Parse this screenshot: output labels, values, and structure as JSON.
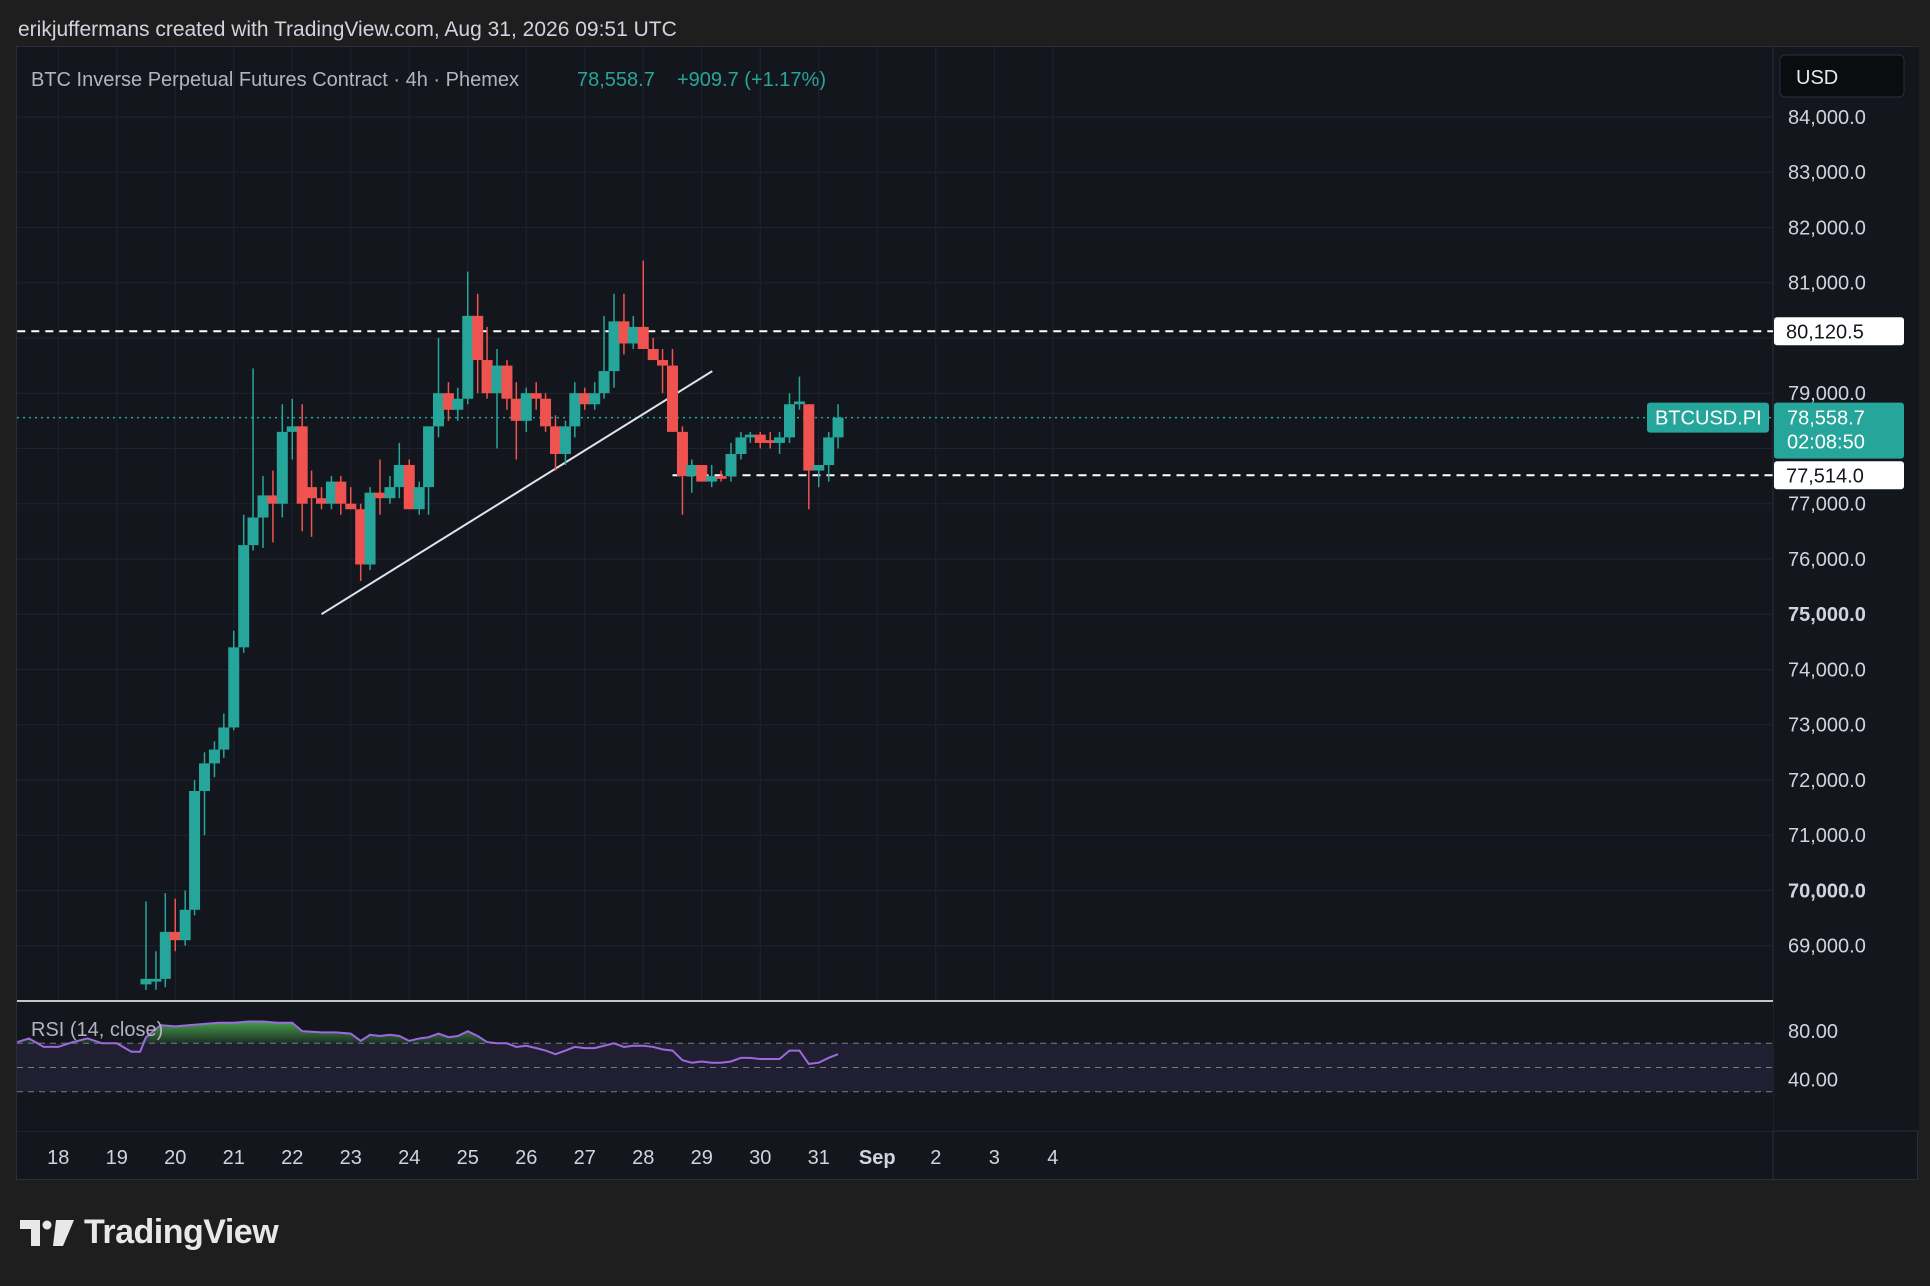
{
  "header": {
    "credit": "erikjuffermans created with TradingView.com, Aug 31, 2026 09:51 UTC"
  },
  "legend": {
    "symbol": "BTC Inverse Perpetual Futures Contract · 4h · Phemex",
    "last": "78,558.7",
    "change": "+909.7 (+1.17%)"
  },
  "currency_button": "USD",
  "price_badge": {
    "symbol": "BTCUSD.PI",
    "price": "78,558.7",
    "countdown": "02:08:50"
  },
  "rsi_label": "RSI (14, close)",
  "brand": "TradingView",
  "colors": {
    "up": "#26a69a",
    "down": "#ef5350",
    "rsi": "#9c6ade",
    "background": "#14161d"
  },
  "chart_data": {
    "type": "candlestick",
    "timeframe": "4h",
    "y_ticks": [
      {
        "value": 84000,
        "label": "84,000.0"
      },
      {
        "value": 83000,
        "label": "83,000.0"
      },
      {
        "value": 82000,
        "label": "82,000.0"
      },
      {
        "value": 81000,
        "label": "81,000.0"
      },
      {
        "value": 79000,
        "label": "79,000.0"
      },
      {
        "value": 77000,
        "label": "77,000.0"
      },
      {
        "value": 76000,
        "label": "76,000.0"
      },
      {
        "value": 75000,
        "label": "75,000.0",
        "bold": true
      },
      {
        "value": 74000,
        "label": "74,000.0"
      },
      {
        "value": 73000,
        "label": "73,000.0"
      },
      {
        "value": 72000,
        "label": "72,000.0"
      },
      {
        "value": 71000,
        "label": "71,000.0"
      },
      {
        "value": 70000,
        "label": "70,000.0",
        "bold": true
      },
      {
        "value": 69000,
        "label": "69,000.0"
      }
    ],
    "x_ticks": [
      {
        "day": 18,
        "label": "18"
      },
      {
        "day": 19,
        "label": "19"
      },
      {
        "day": 20,
        "label": "20"
      },
      {
        "day": 21,
        "label": "21"
      },
      {
        "day": 22,
        "label": "22"
      },
      {
        "day": 23,
        "label": "23"
      },
      {
        "day": 24,
        "label": "24"
      },
      {
        "day": 25,
        "label": "25"
      },
      {
        "day": 26,
        "label": "26"
      },
      {
        "day": 27,
        "label": "27"
      },
      {
        "day": 28,
        "label": "28"
      },
      {
        "day": 29,
        "label": "29"
      },
      {
        "day": 30,
        "label": "30"
      },
      {
        "day": 31,
        "label": "31"
      },
      {
        "day": 32,
        "label": "Sep",
        "bold": true
      },
      {
        "day": 33,
        "label": "2"
      },
      {
        "day": 34,
        "label": "3"
      },
      {
        "day": 35,
        "label": "4"
      }
    ],
    "horizontal_levels": [
      {
        "value": 80120.5,
        "label": "80,120.5",
        "from_day": 17.3
      },
      {
        "value": 77514.0,
        "label": "77,514.0",
        "from_day": 28.5
      }
    ],
    "current_price": 78558.7,
    "trendline": {
      "start": [
        22.5,
        75000
      ],
      "end": [
        29.18,
        79400
      ]
    },
    "candles": [
      {
        "day": 19.5,
        "o": 68300,
        "h": 69800,
        "l": 68200,
        "c": 68400
      },
      {
        "day": 19.67,
        "o": 68350,
        "h": 68900,
        "l": 68200,
        "c": 68400
      },
      {
        "day": 19.83,
        "o": 68400,
        "h": 69950,
        "l": 68250,
        "c": 69250
      },
      {
        "day": 20.0,
        "o": 69250,
        "h": 69850,
        "l": 68900,
        "c": 69100
      },
      {
        "day": 20.17,
        "o": 69100,
        "h": 70000,
        "l": 69000,
        "c": 69650
      },
      {
        "day": 20.33,
        "o": 69650,
        "h": 72000,
        "l": 69550,
        "c": 71800
      },
      {
        "day": 20.5,
        "o": 71800,
        "h": 72500,
        "l": 71000,
        "c": 72300
      },
      {
        "day": 20.67,
        "o": 72300,
        "h": 72700,
        "l": 72050,
        "c": 72550
      },
      {
        "day": 20.83,
        "o": 72550,
        "h": 73200,
        "l": 72400,
        "c": 72950
      },
      {
        "day": 21.0,
        "o": 72950,
        "h": 74700,
        "l": 72900,
        "c": 74400
      },
      {
        "day": 21.17,
        "o": 74400,
        "h": 76800,
        "l": 74300,
        "c": 76250
      },
      {
        "day": 21.33,
        "o": 76250,
        "h": 79450,
        "l": 76150,
        "c": 76750
      },
      {
        "day": 21.5,
        "o": 76750,
        "h": 77500,
        "l": 76200,
        "c": 77150
      },
      {
        "day": 21.67,
        "o": 77150,
        "h": 77600,
        "l": 76300,
        "c": 77000
      },
      {
        "day": 21.83,
        "o": 77000,
        "h": 78800,
        "l": 76750,
        "c": 78300
      },
      {
        "day": 22.0,
        "o": 78300,
        "h": 78900,
        "l": 77800,
        "c": 78400
      },
      {
        "day": 22.17,
        "o": 78400,
        "h": 78800,
        "l": 76500,
        "c": 77000
      },
      {
        "day": 22.33,
        "o": 77300,
        "h": 77600,
        "l": 76400,
        "c": 77100
      },
      {
        "day": 22.5,
        "o": 77100,
        "h": 77300,
        "l": 76900,
        "c": 77000
      },
      {
        "day": 22.67,
        "o": 77000,
        "h": 77500,
        "l": 76900,
        "c": 77400
      },
      {
        "day": 22.83,
        "o": 77400,
        "h": 77500,
        "l": 76800,
        "c": 77000
      },
      {
        "day": 23.0,
        "o": 77000,
        "h": 77300,
        "l": 76900,
        "c": 76900
      },
      {
        "day": 23.17,
        "o": 76900,
        "h": 77000,
        "l": 75600,
        "c": 75900
      },
      {
        "day": 23.33,
        "o": 75900,
        "h": 77300,
        "l": 75800,
        "c": 77200
      },
      {
        "day": 23.5,
        "o": 77200,
        "h": 77800,
        "l": 76800,
        "c": 77100
      },
      {
        "day": 23.67,
        "o": 77100,
        "h": 77500,
        "l": 77000,
        "c": 77300
      },
      {
        "day": 23.83,
        "o": 77300,
        "h": 78100,
        "l": 77100,
        "c": 77700
      },
      {
        "day": 24.0,
        "o": 77700,
        "h": 77800,
        "l": 76900,
        "c": 76900
      },
      {
        "day": 24.17,
        "o": 76900,
        "h": 77400,
        "l": 76800,
        "c": 77300
      },
      {
        "day": 24.33,
        "o": 77300,
        "h": 78400,
        "l": 76800,
        "c": 78400
      },
      {
        "day": 24.5,
        "o": 78400,
        "h": 80000,
        "l": 78200,
        "c": 79000
      },
      {
        "day": 24.67,
        "o": 79000,
        "h": 79200,
        "l": 78500,
        "c": 78700
      },
      {
        "day": 24.83,
        "o": 78700,
        "h": 79100,
        "l": 78500,
        "c": 78900
      },
      {
        "day": 25.0,
        "o": 78900,
        "h": 81200,
        "l": 78800,
        "c": 80400
      },
      {
        "day": 25.17,
        "o": 80400,
        "h": 80800,
        "l": 79000,
        "c": 79600
      },
      {
        "day": 25.33,
        "o": 79600,
        "h": 80200,
        "l": 78900,
        "c": 79000
      },
      {
        "day": 25.5,
        "o": 79000,
        "h": 79800,
        "l": 78000,
        "c": 79500
      },
      {
        "day": 25.67,
        "o": 79500,
        "h": 79600,
        "l": 78700,
        "c": 78900
      },
      {
        "day": 25.83,
        "o": 78900,
        "h": 79200,
        "l": 77800,
        "c": 78500
      },
      {
        "day": 26.0,
        "o": 78500,
        "h": 79100,
        "l": 78300,
        "c": 79000
      },
      {
        "day": 26.17,
        "o": 79000,
        "h": 79200,
        "l": 78700,
        "c": 78900
      },
      {
        "day": 26.33,
        "o": 78900,
        "h": 79000,
        "l": 78300,
        "c": 78400
      },
      {
        "day": 26.5,
        "o": 78400,
        "h": 78600,
        "l": 77600,
        "c": 77900
      },
      {
        "day": 26.67,
        "o": 77900,
        "h": 78500,
        "l": 77700,
        "c": 78400
      },
      {
        "day": 26.83,
        "o": 78400,
        "h": 79200,
        "l": 78200,
        "c": 79000
      },
      {
        "day": 27.0,
        "o": 79000,
        "h": 79100,
        "l": 78700,
        "c": 78800
      },
      {
        "day": 27.17,
        "o": 78800,
        "h": 79200,
        "l": 78700,
        "c": 79000
      },
      {
        "day": 27.33,
        "o": 79000,
        "h": 80400,
        "l": 78900,
        "c": 79400
      },
      {
        "day": 27.5,
        "o": 79400,
        "h": 80800,
        "l": 79100,
        "c": 80300
      },
      {
        "day": 27.67,
        "o": 80300,
        "h": 80800,
        "l": 79700,
        "c": 79900
      },
      {
        "day": 27.83,
        "o": 79900,
        "h": 80400,
        "l": 79800,
        "c": 80200
      },
      {
        "day": 28.0,
        "o": 80200,
        "h": 81400,
        "l": 79800,
        "c": 79800
      },
      {
        "day": 28.17,
        "o": 79800,
        "h": 80000,
        "l": 79600,
        "c": 79600
      },
      {
        "day": 28.33,
        "o": 79600,
        "h": 79800,
        "l": 79000,
        "c": 79500
      },
      {
        "day": 28.5,
        "o": 79500,
        "h": 79800,
        "l": 78300,
        "c": 78300
      },
      {
        "day": 28.67,
        "o": 78300,
        "h": 78400,
        "l": 76800,
        "c": 77500
      },
      {
        "day": 28.83,
        "o": 77500,
        "h": 77800,
        "l": 77200,
        "c": 77700
      },
      {
        "day": 29.0,
        "o": 77700,
        "h": 77700,
        "l": 77400,
        "c": 77400
      },
      {
        "day": 29.17,
        "o": 77400,
        "h": 77700,
        "l": 77300,
        "c": 77500
      },
      {
        "day": 29.33,
        "o": 77500,
        "h": 77600,
        "l": 77400,
        "c": 77450
      },
      {
        "day": 29.5,
        "o": 77500,
        "h": 78100,
        "l": 77400,
        "c": 77900
      },
      {
        "day": 29.67,
        "o": 77900,
        "h": 78300,
        "l": 77800,
        "c": 78200
      },
      {
        "day": 29.83,
        "o": 78200,
        "h": 78300,
        "l": 78100,
        "c": 78250
      },
      {
        "day": 30.0,
        "o": 78250,
        "h": 78300,
        "l": 78000,
        "c": 78100
      },
      {
        "day": 30.17,
        "o": 78150,
        "h": 78300,
        "l": 78000,
        "c": 78100
      },
      {
        "day": 30.33,
        "o": 78100,
        "h": 78300,
        "l": 77900,
        "c": 78200
      },
      {
        "day": 30.5,
        "o": 78200,
        "h": 79000,
        "l": 78100,
        "c": 78800
      },
      {
        "day": 30.67,
        "o": 78800,
        "h": 79300,
        "l": 78700,
        "c": 78850
      },
      {
        "day": 30.83,
        "o": 78800,
        "h": 78800,
        "l": 76900,
        "c": 77600
      },
      {
        "day": 31.0,
        "o": 77600,
        "h": 77700,
        "l": 77300,
        "c": 77700
      },
      {
        "day": 31.17,
        "o": 77700,
        "h": 78300,
        "l": 77400,
        "c": 78200
      },
      {
        "day": 31.33,
        "o": 78200,
        "h": 78800,
        "l": 78000,
        "c": 78558.7
      }
    ],
    "rsi": {
      "label": "RSI (14, close)",
      "y_ticks": [
        {
          "value": 80,
          "label": "80.00"
        },
        {
          "value": 40,
          "label": "40.00"
        }
      ],
      "upper": 70,
      "middle": 50,
      "lower": 30,
      "values": [
        [
          17.3,
          71
        ],
        [
          17.5,
          74
        ],
        [
          17.75,
          67
        ],
        [
          18.0,
          67
        ],
        [
          18.25,
          71
        ],
        [
          18.5,
          74
        ],
        [
          18.75,
          70
        ],
        [
          19.0,
          70
        ],
        [
          19.25,
          63
        ],
        [
          19.4,
          63
        ],
        [
          19.5,
          75
        ],
        [
          19.75,
          85
        ],
        [
          20.0,
          84
        ],
        [
          20.25,
          85
        ],
        [
          20.5,
          86
        ],
        [
          20.75,
          87
        ],
        [
          21.0,
          87
        ],
        [
          21.25,
          88
        ],
        [
          21.5,
          88
        ],
        [
          21.75,
          87
        ],
        [
          22.0,
          87
        ],
        [
          22.17,
          80
        ],
        [
          22.5,
          79
        ],
        [
          22.75,
          79
        ],
        [
          23.0,
          78
        ],
        [
          23.17,
          72
        ],
        [
          23.33,
          77
        ],
        [
          23.5,
          76
        ],
        [
          23.67,
          77
        ],
        [
          23.83,
          76
        ],
        [
          24.0,
          72
        ],
        [
          24.17,
          74
        ],
        [
          24.33,
          75
        ],
        [
          24.5,
          78
        ],
        [
          24.67,
          75
        ],
        [
          24.83,
          76
        ],
        [
          25.0,
          80
        ],
        [
          25.17,
          76
        ],
        [
          25.33,
          71
        ],
        [
          25.5,
          70
        ],
        [
          25.67,
          70
        ],
        [
          25.83,
          67
        ],
        [
          26.0,
          68
        ],
        [
          26.17,
          66
        ],
        [
          26.33,
          64
        ],
        [
          26.5,
          61
        ],
        [
          26.67,
          64
        ],
        [
          26.83,
          67
        ],
        [
          27.0,
          66
        ],
        [
          27.17,
          66
        ],
        [
          27.33,
          68
        ],
        [
          27.5,
          70
        ],
        [
          27.67,
          67
        ],
        [
          27.83,
          68
        ],
        [
          28.0,
          68
        ],
        [
          28.17,
          67
        ],
        [
          28.33,
          65
        ],
        [
          28.5,
          64
        ],
        [
          28.67,
          56
        ],
        [
          28.83,
          54
        ],
        [
          29.0,
          55
        ],
        [
          29.17,
          54
        ],
        [
          29.33,
          54
        ],
        [
          29.5,
          55
        ],
        [
          29.67,
          58
        ],
        [
          29.83,
          58
        ],
        [
          30.0,
          57
        ],
        [
          30.17,
          57
        ],
        [
          30.33,
          57
        ],
        [
          30.5,
          64
        ],
        [
          30.67,
          64
        ],
        [
          30.83,
          53
        ],
        [
          31.0,
          54
        ],
        [
          31.17,
          58
        ],
        [
          31.33,
          61
        ]
      ]
    }
  }
}
